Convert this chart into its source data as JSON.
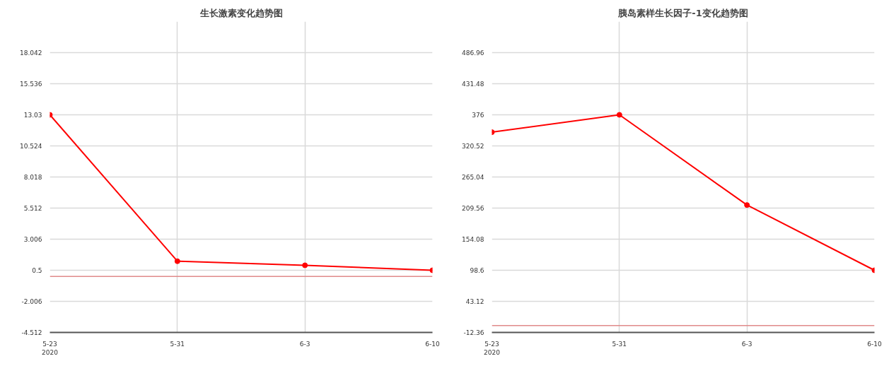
{
  "chart_data": [
    {
      "type": "line",
      "title": "生长激素变化趋势图",
      "categories": [
        "5-23\n2020",
        "5-31",
        "6-3",
        "6-10"
      ],
      "series": [
        {
          "color": "#ff0000",
          "values": [
            13.03,
            1.23,
            0.9,
            0.5
          ]
        }
      ],
      "ylim": [
        -4.512,
        20.548
      ],
      "yticks": [
        -4.512,
        -2.006,
        0.5,
        3.006,
        5.512,
        8.018,
        10.524,
        13.03,
        15.536,
        18.042
      ],
      "ref_lines": [
        {
          "axis": "y",
          "value": 0,
          "color": "#e08a8a"
        }
      ],
      "grid": true,
      "marker": "circle",
      "line_style": "solid"
    },
    {
      "type": "line",
      "title": "胰岛素样生长因子-1变化趋势图",
      "categories": [
        "5-23\n2020",
        "5-31",
        "6-3",
        "6-10"
      ],
      "series": [
        {
          "color": "#ff0000",
          "values": [
            345,
            376,
            215,
            98.6
          ]
        }
      ],
      "ylim": [
        -12.36,
        542.44
      ],
      "yticks": [
        -12.36,
        43.12,
        98.6,
        154.08,
        209.56,
        265.04,
        320.52,
        376,
        431.48,
        486.96
      ],
      "ref_lines": [
        {
          "axis": "y",
          "value": 0,
          "color": "#e08a8a"
        }
      ],
      "grid": true,
      "marker": "circle",
      "line_style": "solid"
    }
  ]
}
